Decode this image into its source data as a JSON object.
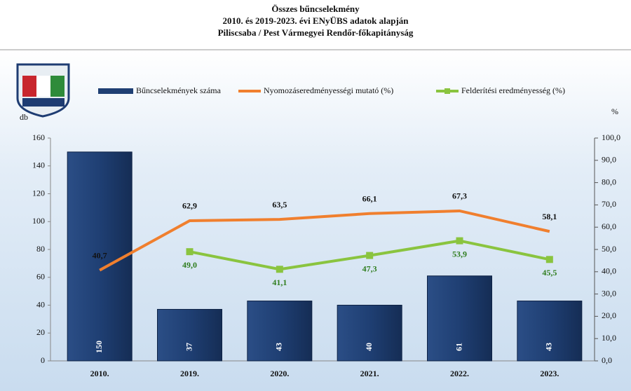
{
  "chart_data": {
    "type": "combo",
    "title": "Összes bűncselekmény",
    "subtitle": "2010. és 2019-2023. évi ENyÜBS adatok alapján",
    "subtitle2": "Piliscsaba  /  Pest Vármegyei Rendőr-főkapitányság",
    "y_label": "db",
    "y2_label": "%",
    "categories": [
      "2010.",
      "2019.",
      "2020.",
      "2021.",
      "2022.",
      "2023."
    ],
    "series": [
      {
        "name": "Bűncselekmények száma",
        "type": "bar",
        "color": "#1f3f73",
        "values": [
          150,
          37,
          43,
          40,
          61,
          43
        ]
      },
      {
        "name": "Nyomozáseredményességi mutató (%)",
        "type": "line",
        "axis": "y2",
        "color": "#f07f2e",
        "values": [
          40.7,
          62.9,
          63.5,
          66.1,
          67.3,
          58.1
        ],
        "value_labels": [
          "40,7",
          "62,9",
          "63,5",
          "66,1",
          "67,3",
          "58,1"
        ]
      },
      {
        "name": "Felderítési eredményesség (%)",
        "type": "line",
        "axis": "y2",
        "color": "#8ac43f",
        "values": [
          null,
          49.0,
          41.1,
          47.3,
          53.9,
          45.5
        ],
        "value_labels": [
          null,
          "49,0",
          "41,1",
          "47,3",
          "53,9",
          "45,5"
        ]
      }
    ],
    "ylim": [
      0,
      160
    ],
    "yticks": [
      0,
      20,
      40,
      60,
      80,
      100,
      120,
      140,
      160
    ],
    "y2lim": [
      0,
      100
    ],
    "y2ticks": [
      {
        "value": 0,
        "label": "0,0"
      },
      {
        "value": 10,
        "label": "10,0"
      },
      {
        "value": 20,
        "label": "20,0"
      },
      {
        "value": 30,
        "label": "30,0"
      },
      {
        "value": 40,
        "label": "40,0"
      },
      {
        "value": 50,
        "label": "50,0"
      },
      {
        "value": 60,
        "label": "60,0"
      },
      {
        "value": 70,
        "label": "70,0"
      },
      {
        "value": 80,
        "label": "80,0"
      },
      {
        "value": 90,
        "label": "90,0"
      },
      {
        "value": 100,
        "label": "100,0"
      }
    ],
    "grid": false,
    "legend": "top"
  }
}
